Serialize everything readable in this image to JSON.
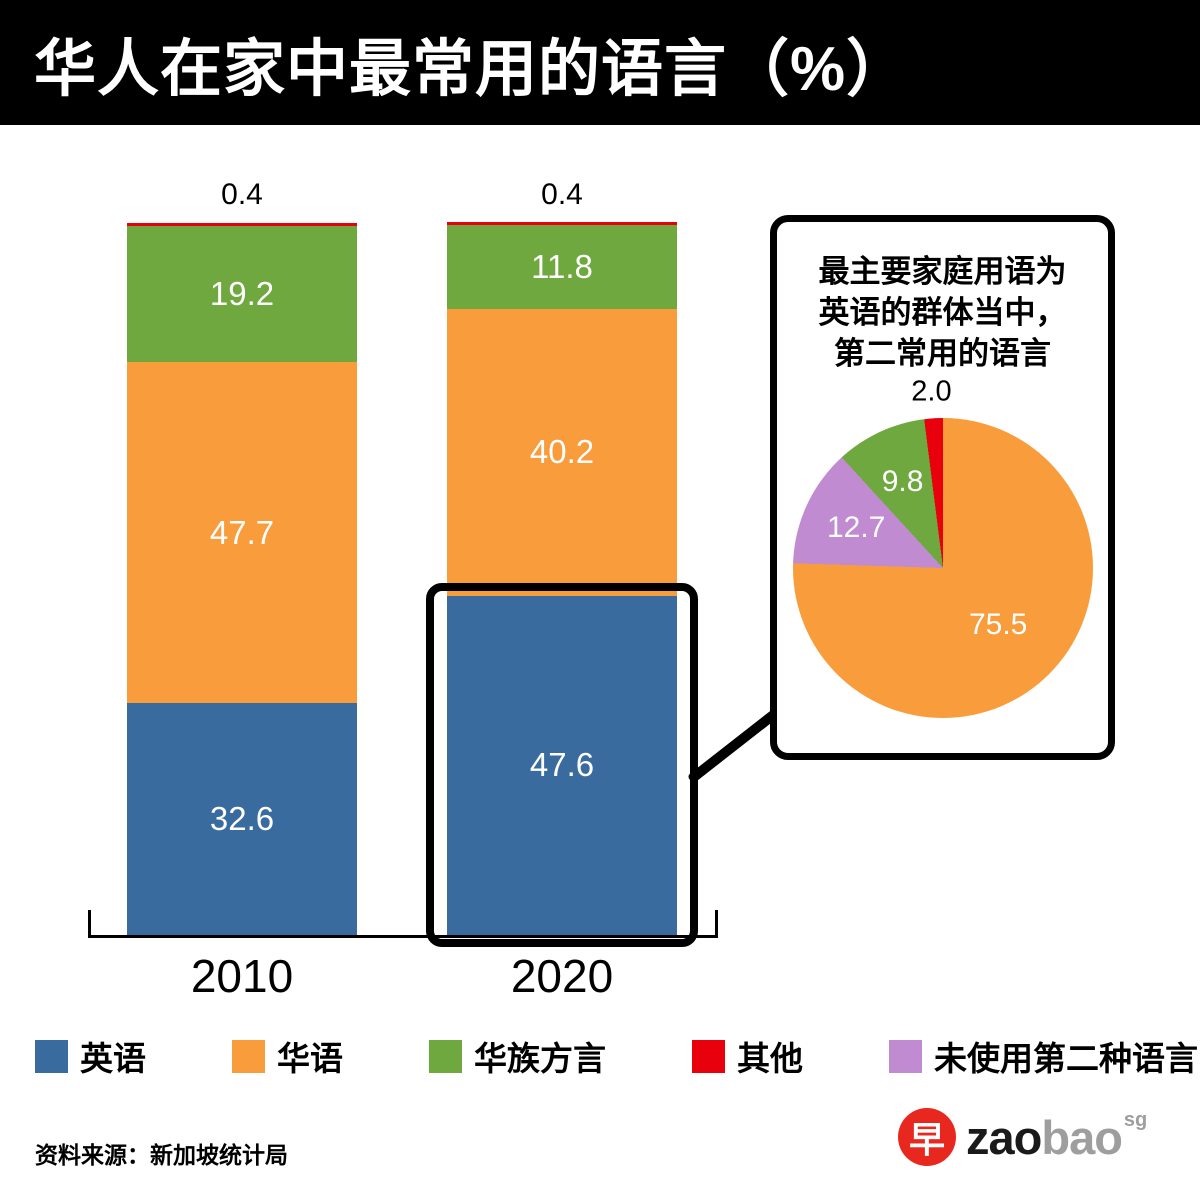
{
  "title": "华人在家中最常用的语言（%）",
  "source": "资料来源：新加坡统计局",
  "logo": {
    "glyph": "早",
    "zao": "zao",
    "bao": "bao",
    "sg": "sg"
  },
  "legend": [
    {
      "label": "英语",
      "color": "#3A6B9E"
    },
    {
      "label": "华语",
      "color": "#F89C3C"
    },
    {
      "label": "华族方言",
      "color": "#6FA83E"
    },
    {
      "label": "其他",
      "color": "#E8000D"
    },
    {
      "label": "未使用第二种语言",
      "color": "#C18BD2"
    }
  ],
  "inset": {
    "lines": [
      "最主要家庭用语为",
      "英语的群体当中，",
      "第二常用的语言"
    ]
  },
  "chart_data": [
    {
      "type": "bar",
      "subtype": "stacked-percent",
      "title": "华人在家中最常用的语言（%）",
      "categories": [
        "2010",
        "2020"
      ],
      "series": [
        {
          "name": "英语",
          "color": "#3A6B9E",
          "values": [
            32.6,
            47.6
          ]
        },
        {
          "name": "华语",
          "color": "#F89C3C",
          "values": [
            47.7,
            40.2
          ]
        },
        {
          "name": "华族方言",
          "color": "#6FA83E",
          "values": [
            19.2,
            11.8
          ]
        },
        {
          "name": "其他",
          "color": "#E8000D",
          "values": [
            0.4,
            0.4
          ]
        }
      ],
      "ylim": [
        0,
        100
      ],
      "value_label_position": "inside segments; 其他 value shown above bar top",
      "highlight": {
        "category": "2020",
        "series": "英语",
        "note": "boxed and linked to inset pie"
      }
    },
    {
      "type": "pie",
      "title": "最主要家庭用语为英语的群体当中，第二常用的语言",
      "labels": [
        "华语",
        "未使用第二种语言",
        "华族方言",
        "其他"
      ],
      "values": [
        75.5,
        12.7,
        9.8,
        2.0
      ],
      "colors": [
        "#F89C3C",
        "#C18BD2",
        "#6FA83E",
        "#E8000D"
      ],
      "start_angle_deg": 0,
      "direction": "clockwise"
    }
  ]
}
